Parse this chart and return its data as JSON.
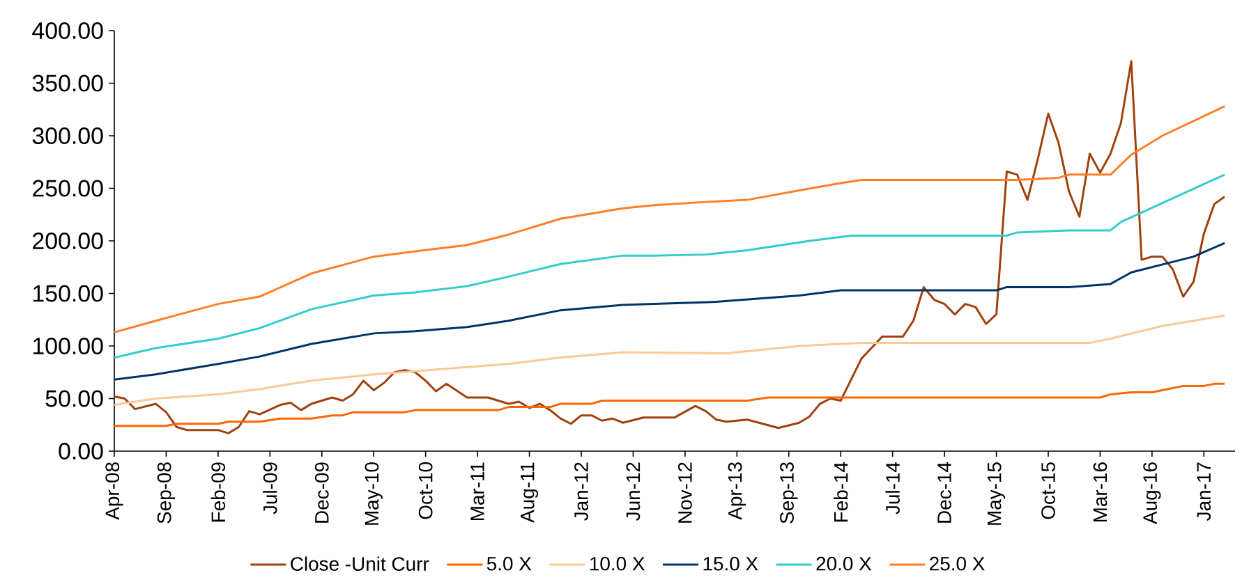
{
  "chart_data": {
    "type": "line",
    "marker": "none",
    "line_style": "solid",
    "legend": "bottom",
    "xlim": [
      "2008-04",
      "2017-04"
    ],
    "ylim": [
      0,
      400
    ],
    "yticks": [
      {
        "value": 0,
        "label": "0.00"
      },
      {
        "value": 50,
        "label": "50.00"
      },
      {
        "value": 100,
        "label": "100.00"
      },
      {
        "value": 150,
        "label": "150.00"
      },
      {
        "value": 200,
        "label": "200.00"
      },
      {
        "value": 250,
        "label": "250.00"
      },
      {
        "value": 300,
        "label": "300.00"
      },
      {
        "value": 350,
        "label": "350.00"
      },
      {
        "value": 400,
        "label": "400.00"
      }
    ],
    "xticks": [
      {
        "value": "2008-04",
        "label": "Apr-08"
      },
      {
        "value": "2008-09",
        "label": "Sep-08"
      },
      {
        "value": "2009-02",
        "label": "Feb-09"
      },
      {
        "value": "2009-07",
        "label": "Jul-09"
      },
      {
        "value": "2009-12",
        "label": "Dec-09"
      },
      {
        "value": "2010-05",
        "label": "May-10"
      },
      {
        "value": "2010-10",
        "label": "Oct-10"
      },
      {
        "value": "2011-03",
        "label": "Mar-11"
      },
      {
        "value": "2011-08",
        "label": "Aug-11"
      },
      {
        "value": "2012-01",
        "label": "Jan-12"
      },
      {
        "value": "2012-06",
        "label": "Jun-12"
      },
      {
        "value": "2012-11",
        "label": "Nov-12"
      },
      {
        "value": "2013-04",
        "label": "Apr-13"
      },
      {
        "value": "2013-09",
        "label": "Sep-13"
      },
      {
        "value": "2014-02",
        "label": "Feb-14"
      },
      {
        "value": "2014-07",
        "label": "Jul-14"
      },
      {
        "value": "2014-12",
        "label": "Dec-14"
      },
      {
        "value": "2015-05",
        "label": "May-15"
      },
      {
        "value": "2015-10",
        "label": "Oct-15"
      },
      {
        "value": "2016-03",
        "label": "Mar-16"
      },
      {
        "value": "2016-08",
        "label": "Aug-16"
      },
      {
        "value": "2017-01",
        "label": "Jan-17"
      }
    ],
    "series": [
      {
        "name": "Close -Unit Curr",
        "color": "#a0400e",
        "x": [
          "2008-04",
          "2008-05",
          "2008-06",
          "2008-08",
          "2008-09",
          "2008-10",
          "2008-11",
          "2009-02",
          "2009-03",
          "2009-04",
          "2009-05",
          "2009-06",
          "2009-08",
          "2009-09",
          "2009-10",
          "2009-11",
          "2010-01",
          "2010-02",
          "2010-03",
          "2010-04",
          "2010-05",
          "2010-06",
          "2010-07",
          "2010-08",
          "2010-09",
          "2010-10",
          "2010-11",
          "2010-12",
          "2011-02",
          "2011-04",
          "2011-05",
          "2011-06",
          "2011-07",
          "2011-08",
          "2011-09",
          "2011-10",
          "2011-11",
          "2011-12",
          "2012-01",
          "2012-02",
          "2012-03",
          "2012-04",
          "2012-05",
          "2012-07",
          "2012-10",
          "2012-12",
          "2013-01",
          "2013-02",
          "2013-03",
          "2013-05",
          "2013-08",
          "2013-10",
          "2013-11",
          "2013-12",
          "2014-01",
          "2014-02",
          "2014-03",
          "2014-04",
          "2014-06",
          "2014-08",
          "2014-09",
          "2014-10",
          "2014-11",
          "2014-12",
          "2015-01",
          "2015-02",
          "2015-03",
          "2015-04",
          "2015-05",
          "2015-06",
          "2015-07",
          "2015-08",
          "2015-09",
          "2015-10",
          "2015-11",
          "2015-12",
          "2016-01",
          "2016-02",
          "2016-03",
          "2016-04",
          "2016-05",
          "2016-06",
          "2016-07",
          "2016-08",
          "2016-09",
          "2016-10",
          "2016-11",
          "2016-12",
          "2017-01",
          "2017-02",
          "2017-03"
        ],
        "values": [
          52,
          50,
          40,
          45,
          37,
          23,
          20,
          20,
          17,
          23,
          38,
          35,
          44,
          46,
          39,
          45,
          51,
          48,
          54,
          67,
          58,
          65,
          75,
          77,
          75,
          67,
          57,
          64,
          51,
          51,
          48,
          45,
          47,
          41,
          45,
          39,
          31,
          26,
          34,
          34,
          29,
          31,
          27,
          32,
          32,
          43,
          38,
          30,
          28,
          30,
          22,
          27,
          33,
          45,
          50,
          48,
          68,
          88,
          109,
          109,
          124,
          156,
          144,
          140,
          130,
          140,
          137,
          121,
          130,
          266,
          263,
          239,
          278,
          321,
          293,
          247,
          223,
          283,
          265,
          283,
          312,
          371,
          182,
          185,
          185,
          173,
          147,
          161,
          207,
          235,
          242
        ]
      },
      {
        "name": "5.0 X",
        "color": "#ff6600",
        "x": [
          "2008-04",
          "2008-09",
          "2008-10",
          "2009-02",
          "2009-03",
          "2009-06",
          "2009-08",
          "2009-11",
          "2010-01",
          "2010-02",
          "2010-03",
          "2010-08",
          "2010-09",
          "2011-05",
          "2011-06",
          "2011-10",
          "2011-11",
          "2012-02",
          "2012-03",
          "2013-05",
          "2013-07",
          "2016-03",
          "2016-04",
          "2016-06",
          "2016-08",
          "2016-09",
          "2016-11",
          "2017-01",
          "2017-02",
          "2017-03"
        ],
        "values": [
          24,
          24,
          26,
          26,
          28,
          28,
          31,
          31,
          34,
          34,
          37,
          37,
          39,
          39,
          42,
          42,
          45,
          45,
          48,
          48,
          51,
          51,
          54,
          56,
          56,
          58,
          62,
          62,
          64,
          64
        ]
      },
      {
        "name": "10.0 X",
        "color": "#fcc896",
        "x": [
          "2008-04",
          "2008-08",
          "2009-02",
          "2009-06",
          "2009-11",
          "2010-05",
          "2010-09",
          "2011-02",
          "2011-06",
          "2011-11",
          "2012-05",
          "2013-03",
          "2013-10",
          "2014-04",
          "2016-02",
          "2016-04",
          "2016-09",
          "2017-03"
        ],
        "values": [
          44,
          50,
          54,
          59,
          67,
          73,
          76,
          80,
          83,
          89,
          94,
          93,
          100,
          103,
          103,
          107,
          119,
          129
        ]
      },
      {
        "name": "15.0 X",
        "color": "#003366",
        "x": [
          "2008-04",
          "2008-08",
          "2009-02",
          "2009-06",
          "2009-11",
          "2010-05",
          "2010-09",
          "2011-02",
          "2011-06",
          "2011-11",
          "2012-05",
          "2012-08",
          "2013-02",
          "2013-10",
          "2014-02",
          "2015-05",
          "2015-06",
          "2015-12",
          "2016-04",
          "2016-06",
          "2016-12",
          "2017-03"
        ],
        "values": [
          68,
          73,
          83,
          90,
          102,
          112,
          114,
          118,
          124,
          134,
          139,
          140,
          142,
          148,
          153,
          153,
          156,
          156,
          159,
          170,
          185,
          198
        ]
      },
      {
        "name": "20.0 X",
        "color": "#33cccc",
        "x": [
          "2008-04",
          "2008-08",
          "2009-02",
          "2009-06",
          "2009-11",
          "2010-05",
          "2010-09",
          "2011-02",
          "2011-06",
          "2011-11",
          "2012-05",
          "2012-08",
          "2013-01",
          "2013-05",
          "2013-11",
          "2014-03",
          "2015-06",
          "2015-07",
          "2015-12",
          "2016-04",
          "2016-05",
          "2016-09",
          "2017-03"
        ],
        "values": [
          89,
          98,
          107,
          117,
          135,
          148,
          151,
          157,
          166,
          178,
          186,
          186,
          187,
          191,
          200,
          205,
          205,
          208,
          210,
          210,
          218,
          236,
          263
        ]
      },
      {
        "name": "25.0 X",
        "color": "#ff7f27",
        "x": [
          "2008-04",
          "2008-08",
          "2009-02",
          "2009-06",
          "2009-11",
          "2010-05",
          "2010-09",
          "2011-02",
          "2011-06",
          "2011-11",
          "2012-05",
          "2012-08",
          "2013-01",
          "2013-05",
          "2013-10",
          "2014-02",
          "2014-04",
          "2015-07",
          "2015-11",
          "2015-12",
          "2016-04",
          "2016-06",
          "2016-09",
          "2017-03"
        ],
        "values": [
          113,
          124,
          140,
          147,
          169,
          185,
          190,
          196,
          206,
          221,
          231,
          234,
          237,
          239,
          248,
          255,
          258,
          258,
          260,
          263,
          263,
          282,
          300,
          328
        ]
      }
    ]
  }
}
